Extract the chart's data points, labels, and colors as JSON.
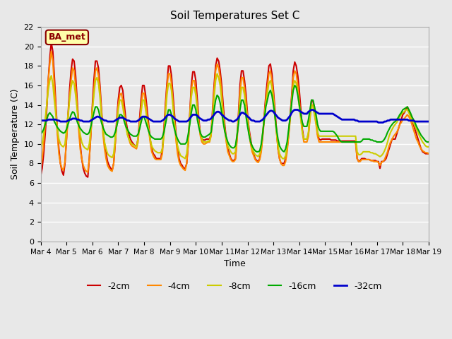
{
  "title": "Soil Temperatures Set C",
  "xlabel": "Time",
  "ylabel": "Soil Temperature (C)",
  "annotation": "BA_met",
  "ylim": [
    0,
    22
  ],
  "yticks": [
    0,
    2,
    4,
    6,
    8,
    10,
    12,
    14,
    16,
    18,
    20,
    22
  ],
  "x_labels": [
    "Mar 4",
    "Mar 5",
    "Mar 6",
    "Mar 7",
    "Mar 8",
    "Mar 9",
    "Mar 10",
    "Mar 11",
    "Mar 12",
    "Mar 13",
    "Mar 14",
    "Mar 15",
    "Mar 16",
    "Mar 17",
    "Mar 18",
    "Mar 19"
  ],
  "legend_labels": [
    "-2cm",
    "-4cm",
    "-8cm",
    "-16cm",
    "-32cm"
  ],
  "line_colors": [
    "#cc0000",
    "#ff8800",
    "#cccc00",
    "#00aa00",
    "#0000cc"
  ],
  "line_widths": [
    1.5,
    1.5,
    1.5,
    1.5,
    2.0
  ],
  "background_color": "#e8e8e8",
  "grid_color": "#ffffff",
  "depth_2cm": [
    6.7,
    7.5,
    9.0,
    11.0,
    13.5,
    16.5,
    18.8,
    20.4,
    19.5,
    17.0,
    14.0,
    11.5,
    9.5,
    8.0,
    7.2,
    6.8,
    8.0,
    10.5,
    13.0,
    15.5,
    17.5,
    18.7,
    18.5,
    17.0,
    14.5,
    12.0,
    10.0,
    8.5,
    7.5,
    7.0,
    6.7,
    6.6,
    8.5,
    11.0,
    14.0,
    16.5,
    18.5,
    18.5,
    17.8,
    16.0,
    13.5,
    11.5,
    10.0,
    9.0,
    8.2,
    7.8,
    7.5,
    7.3,
    8.0,
    10.0,
    12.5,
    14.5,
    15.8,
    16.0,
    15.5,
    14.0,
    12.5,
    11.5,
    11.0,
    10.5,
    10.2,
    10.0,
    9.8,
    9.8,
    10.5,
    12.5,
    14.5,
    16.0,
    16.0,
    15.0,
    13.5,
    12.0,
    10.5,
    9.5,
    9.0,
    8.8,
    8.5,
    8.5,
    8.5,
    8.5,
    9.5,
    11.5,
    14.0,
    16.2,
    18.0,
    18.0,
    17.0,
    15.0,
    13.0,
    11.0,
    9.5,
    8.5,
    8.0,
    7.8,
    7.5,
    7.5,
    8.0,
    10.0,
    13.0,
    16.0,
    17.4,
    17.4,
    16.5,
    14.5,
    12.5,
    11.0,
    10.5,
    10.4,
    10.4,
    10.5,
    10.5,
    10.5,
    11.0,
    13.5,
    16.0,
    18.0,
    18.8,
    18.5,
    17.5,
    16.0,
    14.0,
    12.0,
    10.5,
    9.5,
    9.0,
    8.5,
    8.3,
    8.3,
    8.5,
    10.5,
    13.0,
    16.0,
    17.5,
    17.5,
    16.5,
    15.0,
    13.0,
    11.5,
    10.5,
    9.5,
    9.0,
    8.5,
    8.3,
    8.2,
    8.5,
    9.5,
    11.0,
    13.0,
    15.0,
    16.5,
    18.0,
    18.2,
    17.2,
    15.5,
    13.5,
    11.5,
    9.5,
    8.5,
    8.0,
    8.0,
    8.0,
    8.5,
    9.5,
    11.0,
    13.0,
    15.0,
    17.5,
    18.4,
    18.0,
    17.0,
    15.5,
    13.5,
    11.5,
    10.5,
    10.5,
    10.5,
    11.0,
    13.0,
    14.5,
    14.4,
    13.5,
    12.5,
    11.0,
    10.5,
    10.4,
    10.5,
    10.5,
    10.5,
    10.5,
    10.5,
    10.5,
    10.4,
    10.4,
    10.4,
    10.4,
    10.3,
    10.3,
    10.3,
    10.3,
    10.3,
    10.3,
    10.3,
    10.3,
    10.3,
    10.3,
    10.3,
    10.3,
    10.3,
    8.5,
    8.2,
    8.3,
    8.5,
    8.5,
    8.5,
    8.4,
    8.4,
    8.4,
    8.3,
    8.3,
    8.3,
    8.3,
    8.2,
    8.2,
    7.5,
    8.2,
    8.2,
    8.3,
    8.5,
    9.0,
    9.5,
    10.0,
    10.5,
    10.5,
    10.5,
    11.0,
    11.5,
    12.0,
    12.5,
    13.0,
    13.2,
    13.5,
    13.8,
    13.5,
    13.0,
    12.5,
    12.0,
    11.5,
    11.0,
    10.5,
    10.0,
    9.5,
    9.2,
    9.1,
    9.0,
    9.0,
    9.0
  ],
  "depth_4cm": [
    7.5,
    8.5,
    10.0,
    12.0,
    14.0,
    16.5,
    18.2,
    19.5,
    18.5,
    16.0,
    13.5,
    11.0,
    9.0,
    8.0,
    7.5,
    7.3,
    8.2,
    10.5,
    12.5,
    14.8,
    16.5,
    17.8,
    17.5,
    16.0,
    14.0,
    11.5,
    9.5,
    8.5,
    7.8,
    7.4,
    7.2,
    7.1,
    8.5,
    11.0,
    13.5,
    15.5,
    17.5,
    17.8,
    17.0,
    15.5,
    13.0,
    11.0,
    9.5,
    8.5,
    7.8,
    7.5,
    7.3,
    7.2,
    8.0,
    10.0,
    12.0,
    14.0,
    15.0,
    15.2,
    14.5,
    13.2,
    12.0,
    11.0,
    10.5,
    10.0,
    9.8,
    9.7,
    9.6,
    9.5,
    10.2,
    12.0,
    13.8,
    15.2,
    15.2,
    14.2,
    12.8,
    11.5,
    10.2,
    9.2,
    8.8,
    8.5,
    8.4,
    8.4,
    8.4,
    8.4,
    9.0,
    11.0,
    13.5,
    15.8,
    17.2,
    17.2,
    16.2,
    14.2,
    12.2,
    10.3,
    9.0,
    8.2,
    7.8,
    7.6,
    7.4,
    7.3,
    8.0,
    10.0,
    12.8,
    15.5,
    16.5,
    16.5,
    15.5,
    13.8,
    12.0,
    10.8,
    10.2,
    10.0,
    10.0,
    10.1,
    10.2,
    10.2,
    10.8,
    13.0,
    15.5,
    17.5,
    18.2,
    17.8,
    16.8,
    15.2,
    13.2,
    11.5,
    10.2,
    9.2,
    8.8,
    8.4,
    8.2,
    8.2,
    8.4,
    10.2,
    12.5,
    15.2,
    16.8,
    16.8,
    15.8,
    14.2,
    12.5,
    11.0,
    10.0,
    9.2,
    8.8,
    8.4,
    8.2,
    8.1,
    8.4,
    9.2,
    10.8,
    12.5,
    14.4,
    15.8,
    17.2,
    17.5,
    16.5,
    15.0,
    13.0,
    11.2,
    9.5,
    8.5,
    8.0,
    7.8,
    7.8,
    8.2,
    9.2,
    10.8,
    12.5,
    14.5,
    16.8,
    17.5,
    17.2,
    16.0,
    14.5,
    12.8,
    11.2,
    10.2,
    10.2,
    10.2,
    10.8,
    12.5,
    14.0,
    14.0,
    13.0,
    12.0,
    10.8,
    10.2,
    10.2,
    10.2,
    10.2,
    10.2,
    10.2,
    10.2,
    10.2,
    10.2,
    10.2,
    10.2,
    10.2,
    10.2,
    10.2,
    10.2,
    10.2,
    10.2,
    10.2,
    10.2,
    10.2,
    10.2,
    10.2,
    10.2,
    10.2,
    10.1,
    8.5,
    8.2,
    8.2,
    8.4,
    8.4,
    8.4,
    8.4,
    8.4,
    8.4,
    8.3,
    8.3,
    8.2,
    8.2,
    8.2,
    8.1,
    7.8,
    8.1,
    8.2,
    8.4,
    8.8,
    9.2,
    9.8,
    10.2,
    10.5,
    10.8,
    11.0,
    11.2,
    11.5,
    12.0,
    12.2,
    12.5,
    12.6,
    12.8,
    13.0,
    12.8,
    12.5,
    12.0,
    11.5,
    11.0,
    10.5,
    10.2,
    9.8,
    9.5,
    9.3,
    9.2,
    9.1,
    9.1,
    9.0
  ],
  "depth_8cm": [
    9.5,
    10.0,
    11.0,
    12.5,
    14.0,
    15.5,
    16.5,
    17.0,
    16.2,
    14.5,
    13.0,
    11.5,
    10.5,
    10.0,
    9.8,
    9.7,
    10.0,
    11.5,
    13.0,
    14.5,
    15.8,
    16.5,
    16.2,
    15.0,
    13.5,
    12.0,
    11.0,
    10.2,
    9.8,
    9.6,
    9.5,
    9.4,
    10.0,
    11.5,
    13.5,
    15.0,
    16.5,
    16.8,
    16.2,
    14.8,
    13.0,
    11.5,
    10.2,
    9.5,
    9.0,
    8.8,
    8.7,
    8.6,
    9.0,
    10.5,
    12.0,
    13.5,
    14.5,
    14.5,
    13.8,
    12.8,
    11.8,
    11.0,
    10.5,
    10.2,
    10.0,
    9.9,
    9.8,
    9.7,
    10.5,
    11.8,
    13.2,
    14.5,
    14.5,
    13.5,
    12.5,
    11.5,
    10.5,
    9.8,
    9.5,
    9.3,
    9.2,
    9.1,
    9.1,
    9.1,
    9.5,
    11.0,
    13.0,
    15.0,
    16.2,
    16.2,
    15.5,
    13.8,
    12.2,
    10.8,
    9.8,
    9.2,
    8.8,
    8.7,
    8.6,
    8.5,
    9.0,
    10.5,
    12.5,
    14.8,
    15.8,
    15.8,
    15.0,
    13.5,
    12.0,
    11.0,
    10.5,
    10.2,
    10.2,
    10.2,
    10.3,
    10.3,
    11.0,
    12.8,
    14.8,
    16.5,
    17.2,
    16.8,
    16.0,
    14.5,
    13.0,
    11.5,
    10.5,
    9.8,
    9.5,
    9.2,
    9.0,
    9.0,
    9.2,
    10.8,
    12.5,
    14.5,
    15.8,
    15.8,
    15.0,
    13.8,
    12.5,
    11.2,
    10.2,
    9.5,
    9.2,
    8.9,
    8.8,
    8.7,
    9.0,
    9.8,
    11.2,
    12.8,
    14.2,
    15.2,
    16.2,
    16.5,
    15.8,
    14.5,
    12.8,
    11.2,
    9.8,
    9.0,
    8.7,
    8.5,
    8.5,
    8.8,
    9.8,
    11.2,
    12.8,
    14.5,
    16.0,
    16.5,
    16.2,
    15.2,
    13.8,
    12.5,
    11.2,
    10.5,
    10.5,
    10.5,
    11.2,
    12.8,
    14.0,
    13.8,
    13.0,
    12.2,
    11.2,
    10.8,
    10.8,
    10.8,
    10.8,
    10.8,
    10.8,
    10.8,
    10.8,
    10.8,
    10.8,
    10.8,
    10.8,
    10.8,
    10.8,
    10.8,
    10.8,
    10.8,
    10.8,
    10.8,
    10.8,
    10.8,
    10.8,
    10.8,
    10.8,
    10.8,
    9.2,
    8.9,
    8.9,
    9.0,
    9.2,
    9.2,
    9.2,
    9.2,
    9.2,
    9.1,
    9.1,
    9.0,
    9.0,
    8.9,
    8.8,
    8.7,
    8.8,
    9.0,
    9.3,
    9.7,
    10.2,
    10.8,
    11.2,
    11.5,
    11.8,
    12.0,
    12.2,
    12.5,
    12.8,
    13.0,
    13.2,
    13.3,
    13.5,
    13.5,
    13.2,
    12.8,
    12.5,
    12.2,
    11.8,
    11.5,
    11.2,
    10.8,
    10.5,
    10.2,
    10.0,
    9.8,
    9.7,
    9.7
  ],
  "depth_16cm": [
    11.0,
    11.2,
    11.5,
    12.0,
    12.5,
    13.0,
    13.2,
    13.0,
    12.8,
    12.3,
    12.0,
    11.7,
    11.5,
    11.3,
    11.2,
    11.1,
    11.2,
    11.5,
    12.0,
    12.5,
    13.0,
    13.3,
    13.2,
    12.8,
    12.3,
    11.9,
    11.6,
    11.4,
    11.2,
    11.1,
    11.0,
    11.0,
    11.2,
    11.8,
    12.5,
    13.2,
    13.8,
    13.8,
    13.5,
    12.8,
    12.2,
    11.7,
    11.3,
    11.0,
    10.9,
    10.8,
    10.7,
    10.7,
    10.8,
    11.2,
    11.8,
    12.5,
    13.0,
    13.0,
    12.8,
    12.3,
    11.8,
    11.5,
    11.2,
    11.0,
    10.9,
    10.8,
    10.8,
    10.8,
    11.0,
    11.5,
    12.2,
    12.8,
    12.8,
    12.3,
    11.8,
    11.3,
    10.9,
    10.7,
    10.6,
    10.5,
    10.5,
    10.5,
    10.5,
    10.5,
    10.7,
    11.2,
    12.0,
    12.8,
    13.5,
    13.5,
    13.0,
    12.2,
    11.5,
    10.9,
    10.5,
    10.2,
    10.0,
    10.0,
    10.0,
    10.0,
    10.2,
    11.0,
    12.0,
    13.2,
    14.0,
    14.0,
    13.5,
    12.5,
    11.7,
    11.1,
    10.8,
    10.7,
    10.7,
    10.8,
    10.9,
    11.0,
    11.2,
    12.2,
    13.5,
    14.5,
    15.0,
    14.8,
    14.2,
    13.2,
    12.2,
    11.3,
    10.7,
    10.2,
    9.9,
    9.7,
    9.6,
    9.6,
    9.8,
    10.8,
    12.0,
    13.5,
    14.5,
    14.5,
    14.0,
    12.8,
    11.8,
    10.9,
    10.2,
    9.8,
    9.5,
    9.3,
    9.2,
    9.2,
    9.3,
    10.0,
    11.2,
    12.5,
    13.8,
    14.5,
    15.2,
    15.5,
    15.0,
    14.0,
    12.8,
    11.5,
    10.5,
    9.8,
    9.5,
    9.3,
    9.2,
    9.5,
    10.2,
    11.5,
    12.8,
    14.2,
    15.5,
    16.0,
    15.8,
    15.0,
    14.0,
    13.0,
    12.2,
    11.8,
    11.8,
    11.8,
    12.5,
    13.5,
    14.5,
    14.5,
    13.8,
    13.0,
    12.0,
    11.5,
    11.3,
    11.3,
    11.3,
    11.3,
    11.3,
    11.3,
    11.3,
    11.3,
    11.3,
    11.2,
    11.0,
    10.8,
    10.5,
    10.3,
    10.2,
    10.2,
    10.2,
    10.2,
    10.2,
    10.2,
    10.2,
    10.2,
    10.2,
    10.2,
    10.2,
    10.2,
    10.2,
    10.3,
    10.5,
    10.5,
    10.5,
    10.5,
    10.5,
    10.4,
    10.4,
    10.3,
    10.3,
    10.2,
    10.2,
    10.2,
    10.2,
    10.3,
    10.5,
    10.8,
    11.2,
    11.5,
    11.8,
    12.0,
    12.2,
    12.3,
    12.5,
    12.7,
    13.0,
    13.2,
    13.5,
    13.6,
    13.7,
    13.8,
    13.5,
    13.2,
    12.8,
    12.5,
    12.2,
    11.8,
    11.5,
    11.2,
    10.9,
    10.7,
    10.5,
    10.3,
    10.2,
    10.2
  ],
  "depth_32cm": [
    12.4,
    12.4,
    12.4,
    12.4,
    12.4,
    12.5,
    12.5,
    12.5,
    12.5,
    12.5,
    12.5,
    12.4,
    12.4,
    12.3,
    12.3,
    12.3,
    12.3,
    12.3,
    12.4,
    12.5,
    12.5,
    12.6,
    12.6,
    12.6,
    12.5,
    12.5,
    12.4,
    12.4,
    12.3,
    12.3,
    12.3,
    12.3,
    12.3,
    12.4,
    12.5,
    12.6,
    12.7,
    12.8,
    12.8,
    12.7,
    12.6,
    12.5,
    12.4,
    12.4,
    12.3,
    12.3,
    12.3,
    12.3,
    12.3,
    12.4,
    12.5,
    12.6,
    12.7,
    12.7,
    12.7,
    12.6,
    12.5,
    12.4,
    12.4,
    12.3,
    12.3,
    12.3,
    12.3,
    12.3,
    12.4,
    12.5,
    12.7,
    12.8,
    12.8,
    12.8,
    12.7,
    12.6,
    12.5,
    12.4,
    12.3,
    12.3,
    12.3,
    12.3,
    12.3,
    12.3,
    12.4,
    12.5,
    12.7,
    12.9,
    13.0,
    13.0,
    12.9,
    12.8,
    12.6,
    12.5,
    12.4,
    12.3,
    12.3,
    12.3,
    12.3,
    12.3,
    12.3,
    12.4,
    12.6,
    12.8,
    13.0,
    13.0,
    13.0,
    12.9,
    12.7,
    12.6,
    12.5,
    12.4,
    12.4,
    12.4,
    12.5,
    12.5,
    12.6,
    12.8,
    13.0,
    13.2,
    13.3,
    13.3,
    13.2,
    13.0,
    12.9,
    12.7,
    12.6,
    12.5,
    12.4,
    12.4,
    12.3,
    12.3,
    12.4,
    12.5,
    12.7,
    13.0,
    13.2,
    13.2,
    13.1,
    13.0,
    12.8,
    12.7,
    12.5,
    12.4,
    12.4,
    12.3,
    12.3,
    12.3,
    12.3,
    12.4,
    12.5,
    12.7,
    12.9,
    13.1,
    13.3,
    13.4,
    13.4,
    13.3,
    13.1,
    12.9,
    12.7,
    12.6,
    12.5,
    12.4,
    12.4,
    12.4,
    12.5,
    12.7,
    12.9,
    13.2,
    13.4,
    13.5,
    13.5,
    13.5,
    13.4,
    13.3,
    13.2,
    13.1,
    13.1,
    13.1,
    13.3,
    13.4,
    13.5,
    13.5,
    13.4,
    13.3,
    13.2,
    13.1,
    13.1,
    13.1,
    13.1,
    13.1,
    13.1,
    13.1,
    13.1,
    13.1,
    13.1,
    13.0,
    12.9,
    12.8,
    12.7,
    12.6,
    12.5,
    12.5,
    12.5,
    12.5,
    12.5,
    12.5,
    12.5,
    12.5,
    12.5,
    12.4,
    12.4,
    12.3,
    12.3,
    12.3,
    12.3,
    12.3,
    12.3,
    12.3,
    12.3,
    12.3,
    12.3,
    12.3,
    12.3,
    12.3,
    12.2,
    12.2,
    12.2,
    12.2,
    12.3,
    12.3,
    12.4,
    12.4,
    12.5,
    12.5,
    12.5,
    12.5,
    12.5,
    12.5,
    12.5,
    12.5,
    12.5,
    12.5,
    12.5,
    12.5,
    12.4,
    12.4,
    12.4,
    12.4,
    12.3,
    12.3,
    12.3,
    12.3,
    12.3,
    12.3,
    12.3,
    12.3,
    12.3,
    12.3
  ]
}
